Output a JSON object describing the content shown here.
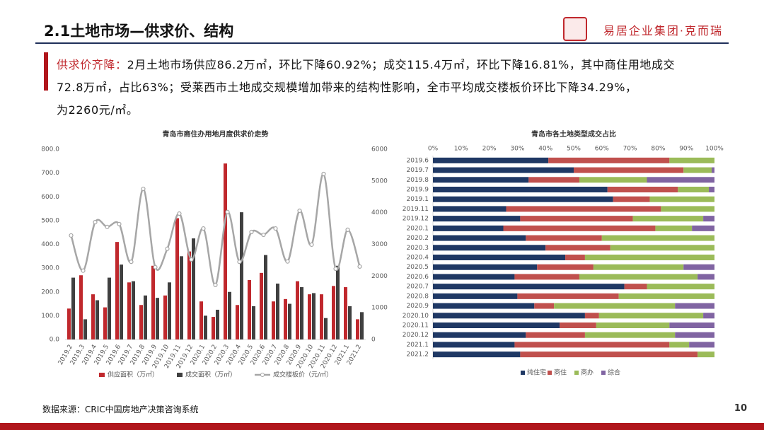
{
  "header": {
    "title": "2.1土地市场—供求价、结构",
    "logo": "易居企业集团·克而瑞"
  },
  "summary": {
    "lead": "供求价齐降：",
    "lines": [
      "2月土地市场供应86.2万㎡，环比下降60.92%；成交115.4万㎡，环比下降16.81%，其中商住用地成交",
      "72.8万㎡，占比63%；受莱西市土地成交规模增加带来的结构性影响，全市平均成交楼板价环比下降34.29%，",
      "为2260元/㎡。"
    ]
  },
  "footer": {
    "source": "数据来源：CRIC中国房地产决策咨询系统",
    "page": "10"
  },
  "chart_data": [
    {
      "type": "combo",
      "title": "青岛市商住办用地月度供求价走势",
      "categories": [
        "2019.2",
        "2019.3",
        "2019.4",
        "2019.5",
        "2019.6",
        "2019.7",
        "2019.8",
        "2019.9",
        "2019.10",
        "2019.11",
        "2019.12",
        "2020.1",
        "2020.2",
        "2020.3",
        "2020.4",
        "2020.5",
        "2020.6",
        "2020.7",
        "2020.8",
        "2020.9",
        "2020.10",
        "2020.11",
        "2020.12",
        "2021.1",
        "2021.2"
      ],
      "series": [
        {
          "name": "供应面积（万㎡）",
          "color": "#c0282d",
          "values": [
            130,
            270,
            190,
            135,
            410,
            240,
            145,
            310,
            185,
            510,
            370,
            160,
            95,
            740,
            145,
            250,
            280,
            160,
            170,
            245,
            190,
            190,
            225,
            220,
            85
          ]
        },
        {
          "name": "成交面积（万㎡）",
          "color": "#404040",
          "values": [
            260,
            85,
            165,
            260,
            315,
            245,
            185,
            175,
            240,
            350,
            425,
            100,
            125,
            200,
            535,
            140,
            355,
            235,
            150,
            220,
            195,
            90,
            310,
            140,
            115
          ]
        },
        {
          "name": "成交楼板价（元/㎡）",
          "color": "#a6a6a6",
          "type": "line",
          "axis": "y2",
          "values": [
            3280,
            2170,
            3700,
            3550,
            3640,
            2450,
            4750,
            2280,
            2860,
            3970,
            2520,
            3500,
            1720,
            4020,
            2450,
            3390,
            3300,
            3500,
            2460,
            4060,
            2990,
            5220,
            2230,
            3460,
            2300
          ]
        }
      ],
      "ylim": [
        0,
        800
      ],
      "yticks": [
        {
          "value": 0,
          "label": "0.0"
        },
        {
          "value": 100,
          "label": "100.0"
        },
        {
          "value": 200,
          "label": "200.0"
        },
        {
          "value": 300,
          "label": "300.0"
        },
        {
          "value": 400,
          "label": "400.0"
        },
        {
          "value": 500,
          "label": "500.0"
        },
        {
          "value": 600,
          "label": "600.0"
        },
        {
          "value": 700,
          "label": "700.0"
        },
        {
          "value": 800,
          "label": "800.0"
        }
      ],
      "y2lim": [
        0,
        6000
      ],
      "y2ticks": [
        0,
        1000,
        2000,
        3000,
        4000,
        5000,
        6000
      ],
      "grid": false
    },
    {
      "type": "barh",
      "stacked": true,
      "title": "青岛市各土地类型成交占比",
      "categories": [
        "2019.6",
        "2019.7",
        "2019.8",
        "2019.9",
        "2019.1",
        "2019.11",
        "2019.12",
        "2020.1",
        "2020.2",
        "2020.3",
        "2020.4",
        "2020.5",
        "2020.6",
        "2020.7",
        "2020.8",
        "2020.9",
        "2020.10",
        "2020.11",
        "2020.12",
        "2021.1",
        "2021.2"
      ],
      "series": [
        {
          "name": "纯住宅",
          "color": "#1f3864",
          "values": [
            41,
            50,
            34,
            62,
            64,
            26,
            31,
            25,
            33,
            40,
            47,
            37,
            29,
            68,
            30,
            36,
            54,
            45,
            33,
            29,
            31
          ]
        },
        {
          "name": "商住",
          "color": "#c0504d",
          "values": [
            43,
            39,
            18,
            25,
            13,
            55,
            40,
            54,
            27,
            23,
            7,
            20,
            23,
            8,
            36,
            7,
            5,
            13,
            21,
            55,
            63
          ]
        },
        {
          "name": "商办",
          "color": "#9bbb59",
          "values": [
            16,
            10,
            24,
            11,
            23,
            19,
            25,
            13,
            40,
            37,
            46,
            32,
            42,
            24,
            34,
            43,
            37,
            26,
            32,
            7,
            6
          ]
        },
        {
          "name": "综合",
          "color": "#8064a2",
          "values": [
            0,
            1,
            24,
            2,
            0,
            0,
            4,
            8,
            0,
            0,
            0,
            11,
            6,
            0,
            0,
            14,
            4,
            16,
            14,
            9,
            0
          ]
        }
      ],
      "xlim": [
        0,
        100
      ],
      "xticks": [
        {
          "value": 0,
          "label": "0%"
        },
        {
          "value": 10,
          "label": "10%"
        },
        {
          "value": 20,
          "label": "20%"
        },
        {
          "value": 30,
          "label": "30%"
        },
        {
          "value": 40,
          "label": "40%"
        },
        {
          "value": 50,
          "label": "50%"
        },
        {
          "value": 60,
          "label": "60%"
        },
        {
          "value": 70,
          "label": "70%"
        },
        {
          "value": 80,
          "label": "80%"
        },
        {
          "value": 90,
          "label": "90%"
        },
        {
          "value": 100,
          "label": "100%"
        }
      ],
      "grid": false
    }
  ]
}
